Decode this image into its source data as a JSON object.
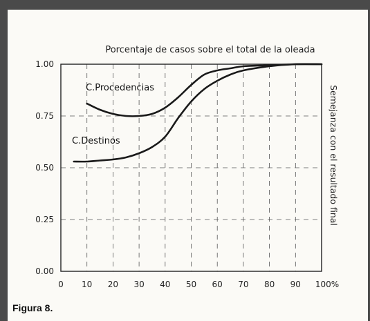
{
  "caption": "Figura 8.",
  "chart_data": {
    "type": "line",
    "title": "Porcentaje de casos sobre el total de la oleada",
    "ylabel": "Semejanza con el resultado final",
    "xlabel": "",
    "x_ticks": [
      "0",
      "10",
      "20",
      "30",
      "40",
      "50",
      "60",
      "70",
      "80",
      "90",
      "100%"
    ],
    "y_ticks": [
      "0.00",
      "0.25",
      "0.50",
      "0.75",
      "1.00"
    ],
    "xlim": [
      0,
      100
    ],
    "ylim": [
      0,
      1
    ],
    "grid": true,
    "series": [
      {
        "name": "C.Procedencias",
        "x": [
          10,
          15,
          20,
          25,
          30,
          35,
          40,
          45,
          50,
          55,
          60,
          65,
          70,
          80,
          90,
          100
        ],
        "y": [
          0.81,
          0.78,
          0.76,
          0.75,
          0.75,
          0.76,
          0.79,
          0.84,
          0.9,
          0.95,
          0.97,
          0.98,
          0.99,
          0.995,
          1.0,
          1.0
        ]
      },
      {
        "name": "C.Destinos",
        "x": [
          5,
          10,
          15,
          20,
          25,
          30,
          35,
          40,
          45,
          50,
          55,
          60,
          65,
          70,
          80,
          90,
          100
        ],
        "y": [
          0.53,
          0.53,
          0.535,
          0.54,
          0.55,
          0.57,
          0.6,
          0.65,
          0.74,
          0.82,
          0.88,
          0.92,
          0.95,
          0.97,
          0.99,
          1.0,
          1.0
        ]
      }
    ]
  }
}
